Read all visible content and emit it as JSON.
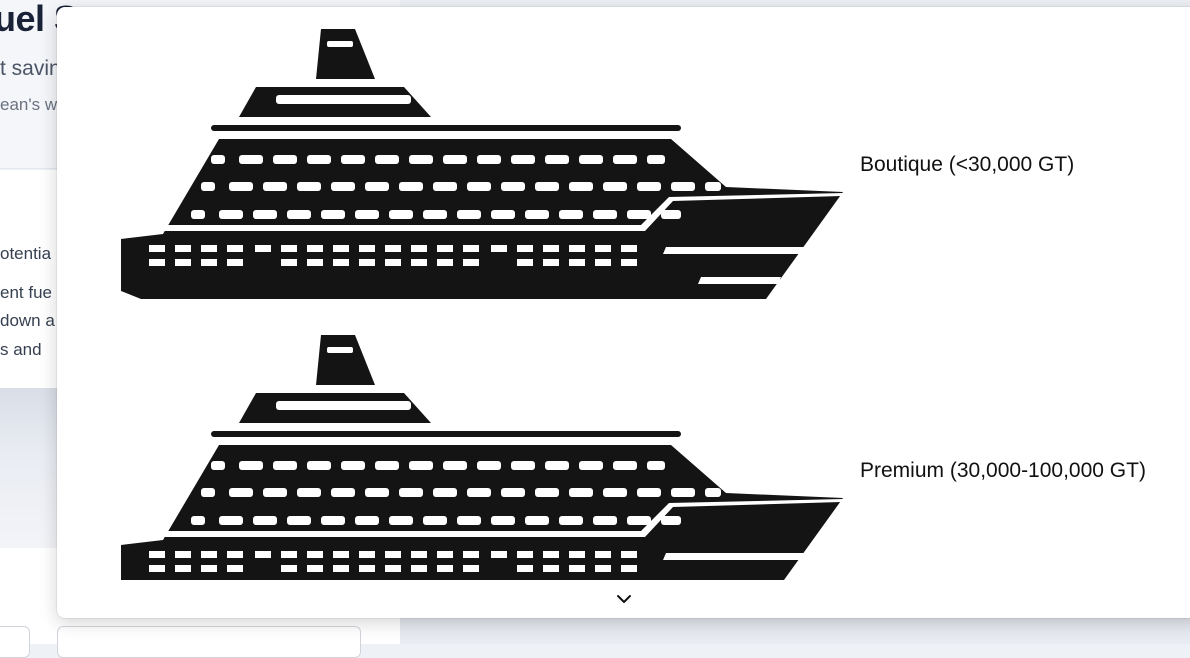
{
  "background": {
    "title": "uel S",
    "subtitle": "t savin",
    "description": "ean's w",
    "card_lines": [
      "otentia",
      "ent fue",
      "down a",
      "s and"
    ]
  },
  "dropdown": {
    "options": [
      {
        "label": "Boutique (<30,000 GT)",
        "icon": "cruise-ship-icon"
      },
      {
        "label": "Premium (30,000-100,000 GT)",
        "icon": "cruise-ship-icon"
      }
    ],
    "scroll_icon": "chevron-down-icon"
  },
  "colors": {
    "ship": "#141414",
    "panel": "#ffffff",
    "text": "#111111"
  }
}
